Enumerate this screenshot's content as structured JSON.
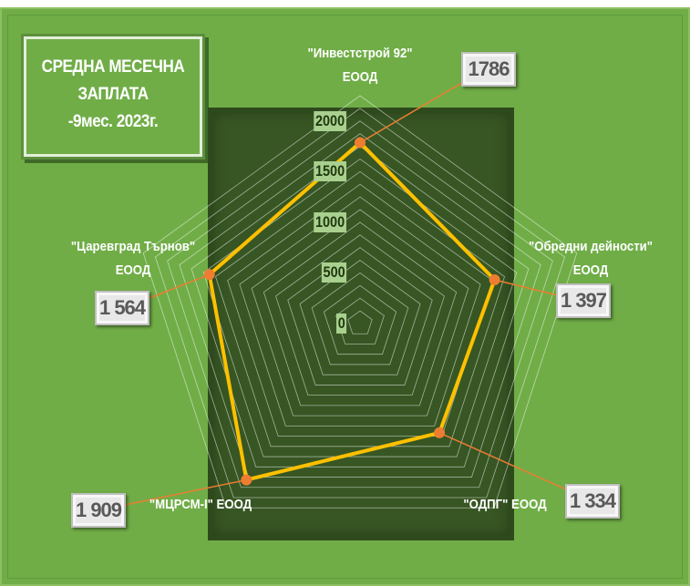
{
  "title_lines": [
    "СРЕДНА МЕСЕЧНА",
    "ЗАПЛАТА",
    "-9мес. 2023г."
  ],
  "chart_data": {
    "type": "radar",
    "categories": [
      "\"Инвестстрой 92\" ЕООД",
      "\"Обредни дейности\" ЕООД",
      "\"ОДПГ\" ЕООД",
      "\"МЦРСМ-I\" ЕООД",
      "\"Царевград Търнов\" ЕООД"
    ],
    "category_labels": [
      [
        "\"Инвестстрой 92\"",
        "ЕООД"
      ],
      [
        "\"Обредни дейности\"",
        "ЕООД"
      ],
      [
        "\"ОДПГ\" ЕООД"
      ],
      [
        "\"МЦРСМ-I\" ЕООД"
      ],
      [
        "\"Царевград Търнов\"",
        "ЕООД"
      ]
    ],
    "values": [
      1786,
      1397,
      1334,
      1909,
      1564
    ],
    "value_labels": [
      "1786",
      "1 397",
      "1 334",
      "1 909",
      "1 564"
    ],
    "rlim": [
      0,
      2250
    ],
    "ticks": [
      0,
      500,
      1000,
      1500,
      2000
    ],
    "tick_labels": [
      "0",
      "500",
      "1000",
      "1500",
      "2000"
    ],
    "grid": true,
    "colors": {
      "background": "#70ad47",
      "plot_panel": "#375623",
      "line": "#ffc000",
      "marker": "#ed7d31",
      "leader": "#ed7d31",
      "grid": "#ffffff",
      "tick_bg": "#a9d08e"
    }
  }
}
